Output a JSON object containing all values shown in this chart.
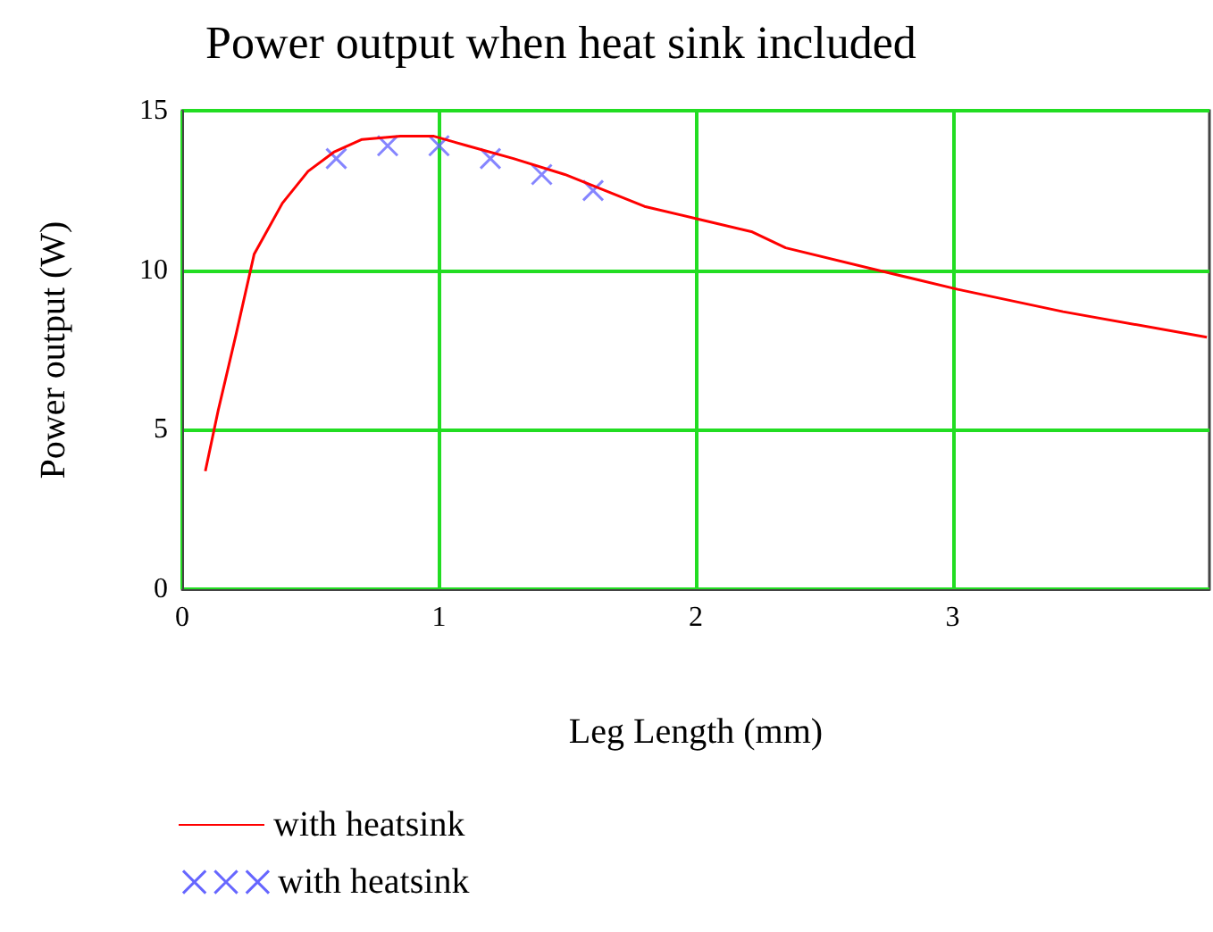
{
  "chart_data": {
    "type": "line",
    "title": "Power output when heat sink included",
    "xlabel": "Leg Length (mm)",
    "ylabel": "Power output (W)",
    "xlim": [
      0,
      4
    ],
    "xticks": [
      0,
      1,
      2,
      3
    ],
    "ylim": [
      0,
      15
    ],
    "yticks": [
      0,
      5,
      10,
      15
    ],
    "grid": true,
    "legend": "bottom left",
    "series": [
      {
        "name": "with heatsink",
        "color": "#ff0000",
        "marker": "none",
        "line_style": "solid",
        "x": [
          0.09,
          0.14,
          0.21,
          0.28,
          0.39,
          0.49,
          0.59,
          0.7,
          0.85,
          0.98,
          1.11,
          1.29,
          1.49,
          1.8,
          2.01,
          2.22,
          2.35,
          2.76,
          3.02,
          3.43,
          3.99
        ],
        "values": [
          3.7,
          5.6,
          8,
          10.5,
          12.1,
          13.1,
          13.7,
          14.1,
          14.2,
          14.2,
          13.9,
          13.5,
          13,
          12,
          11.6,
          11.2,
          10.7,
          9.9,
          9.4,
          8.7,
          7.9
        ]
      },
      {
        "name": "with heatsink",
        "type": "scatter",
        "color": "#6666ff",
        "marker": "cross",
        "x": [
          0.6,
          0.8,
          1,
          1.2,
          1.4,
          1.6
        ],
        "values": [
          13.5,
          13.9,
          13.9,
          13.5,
          13,
          12.5
        ]
      }
    ]
  }
}
